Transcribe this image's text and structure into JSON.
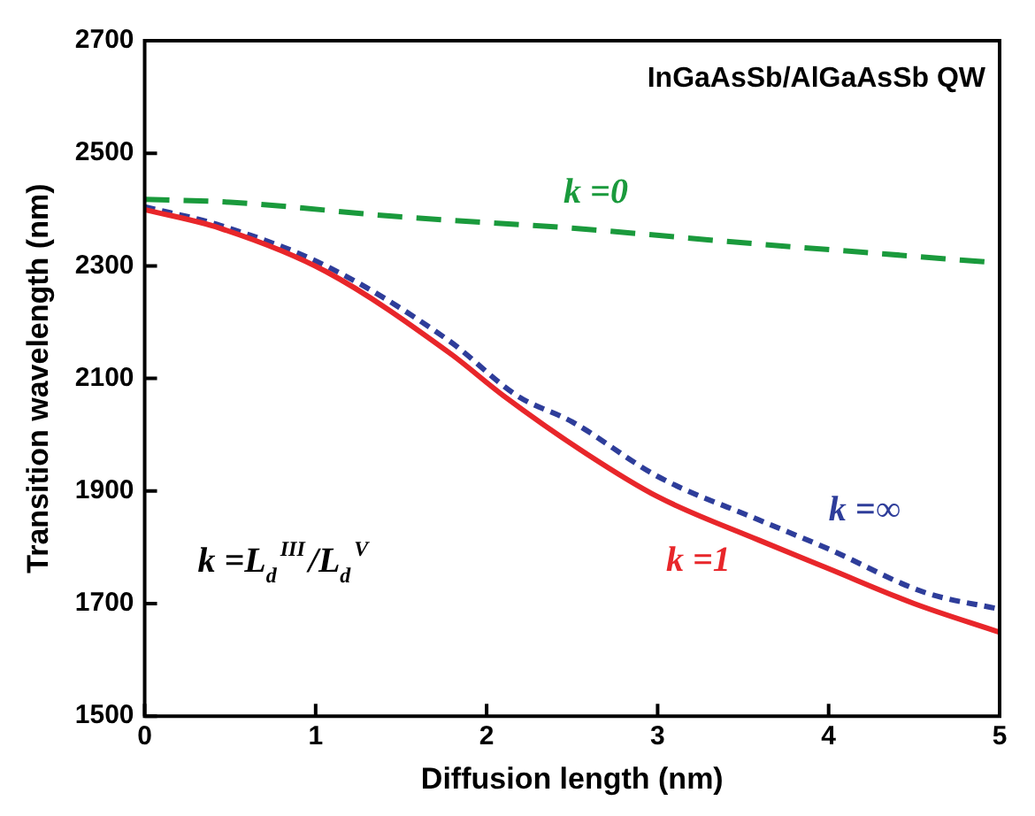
{
  "chart_data": {
    "type": "line",
    "xlabel": "Diffusion length (nm)",
    "ylabel": "Transition wavelength (nm)",
    "xlim": [
      0,
      5
    ],
    "xticks": [
      0,
      1,
      2,
      3,
      4,
      5
    ],
    "ylim": [
      1500,
      2700
    ],
    "yticks": [
      1500,
      1700,
      1900,
      2100,
      2300,
      2500,
      2700
    ],
    "grid": false,
    "legend": false,
    "marker": "none",
    "annotations": [
      "InGaAsSb/AlGaAsSb QW",
      "k =L$_{d}$$^{III}$/L$_{d}$$^{V}$"
    ],
    "series": [
      {
        "name": "k =0",
        "color": "#1a9a3c",
        "line_style": "dashed",
        "x": [
          0,
          0.5,
          1.5,
          2.5,
          3.5,
          4.5,
          5
        ],
        "values": [
          2418,
          2413,
          2387,
          2367,
          2341,
          2317,
          2305
        ]
      },
      {
        "name": "k =1",
        "color": "#e8262a",
        "line_style": "solid",
        "x": [
          0,
          0.44,
          1.06,
          1.78,
          2.1,
          2.58,
          3,
          3.59,
          4,
          4.5,
          5
        ],
        "values": [
          2400,
          2367,
          2290,
          2146,
          2069,
          1967,
          1890,
          1813,
          1762,
          1700,
          1649
        ]
      },
      {
        "name": "k =∞",
        "color": "#2e3d9a",
        "line_style": "dotted",
        "x": [
          0,
          0.44,
          1.06,
          1.78,
          2.18,
          2.5,
          3,
          3.59,
          4,
          4.56,
          5
        ],
        "values": [
          2405,
          2372,
          2300,
          2167,
          2069,
          2023,
          1926,
          1849,
          1797,
          1720,
          1690
        ]
      }
    ]
  }
}
